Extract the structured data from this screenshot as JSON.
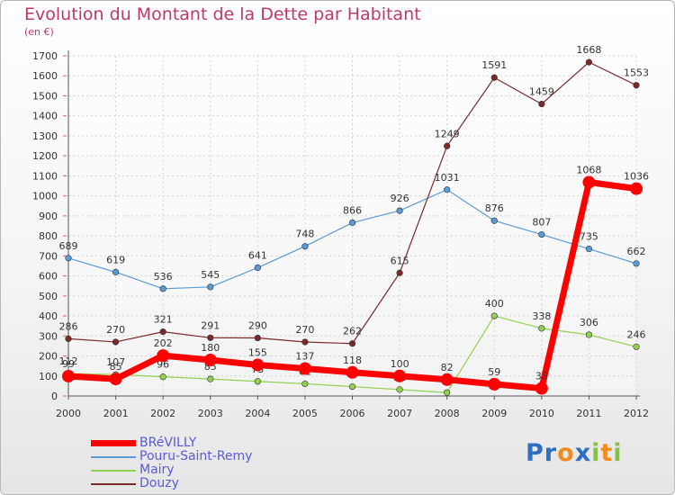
{
  "title": "Evolution du Montant de la Dette par Habitant",
  "unit": "(en €)",
  "logo": {
    "letters": [
      "P",
      "r",
      "o",
      "x",
      "i",
      "t",
      "i"
    ],
    "colors": [
      "#2e6fc4",
      "#2e6fc4",
      "#f28c1e",
      "#2e6fc4",
      "#84c341",
      "#f28c1e",
      "#84c341"
    ]
  },
  "chart_data": {
    "type": "line",
    "x": [
      "2000",
      "2001",
      "2002",
      "2003",
      "2004",
      "2005",
      "2006",
      "2007",
      "2008",
      "2009",
      "2010",
      "2011",
      "2012"
    ],
    "ylim": [
      0,
      1700
    ],
    "yticks": [
      0,
      100,
      200,
      300,
      400,
      500,
      600,
      700,
      800,
      900,
      1000,
      1100,
      1200,
      1300,
      1400,
      1500,
      1600,
      1700
    ],
    "grid": true,
    "legend_position": "bottom-left",
    "series": [
      {
        "name": "BRéVILLY",
        "color": "#ff0000",
        "width": 7,
        "values": [
          99,
          85,
          202,
          180,
          155,
          137,
          118,
          100,
          82,
          59,
          38,
          1068,
          1036
        ]
      },
      {
        "name": "Pouru-Saint-Remy",
        "color": "#5b9bd5",
        "width": 1.2,
        "values": [
          689,
          619,
          536,
          545,
          641,
          748,
          866,
          926,
          1031,
          876,
          807,
          735,
          662
        ]
      },
      {
        "name": "Mairy",
        "color": "#92d050",
        "width": 1.2,
        "values": [
          112,
          107,
          96,
          85,
          73,
          61,
          47,
          32,
          17,
          400,
          338,
          306,
          246
        ]
      },
      {
        "name": "Douzy",
        "color": "#7b2a2a",
        "width": 1.2,
        "values": [
          286,
          270,
          321,
          291,
          290,
          270,
          262,
          615,
          1249,
          1591,
          1459,
          1668,
          1553
        ]
      }
    ]
  }
}
